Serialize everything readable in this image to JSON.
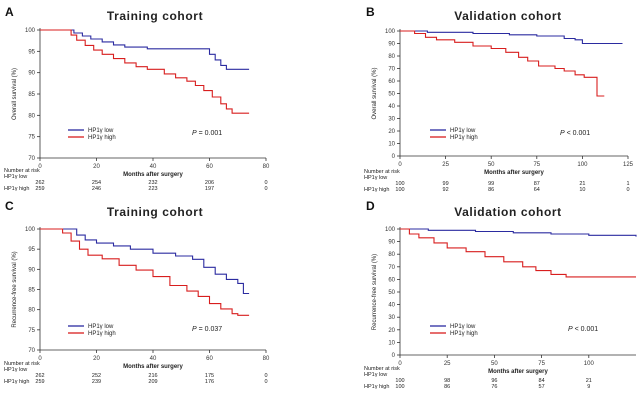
{
  "figure": {
    "risk_header": "Number at risk",
    "xlabel": "Months after surgery",
    "p_prefix": "P"
  },
  "chart_data": [
    {
      "panel": "A",
      "title": "Training cohort",
      "type": "line",
      "ylabel": "Overall survival (%)",
      "xlabel": "Months after surgery",
      "xlim": [
        0,
        80
      ],
      "ylim": [
        70,
        100
      ],
      "xticks": [
        0,
        20,
        40,
        60,
        80
      ],
      "yticks": [
        70,
        75,
        80,
        85,
        90,
        95,
        100
      ],
      "legend_placement": "bottom-left",
      "p_value": "= 0.001",
      "series": [
        {
          "name": "HP1γ low",
          "color": "#2b2ba0",
          "points": [
            [
              0,
              100
            ],
            [
              9,
              100
            ],
            [
              12,
              99.3
            ],
            [
              15,
              98.6
            ],
            [
              18,
              97.9
            ],
            [
              22,
              97.2
            ],
            [
              26,
              96.5
            ],
            [
              30,
              96
            ],
            [
              38,
              95.6
            ],
            [
              58,
              95.6
            ],
            [
              60,
              94.3
            ],
            [
              62,
              93
            ],
            [
              64,
              91.7
            ],
            [
              66,
              90.8
            ],
            [
              74,
              90.8
            ]
          ]
        },
        {
          "name": "HP1γ high",
          "color": "#d81e1e",
          "points": [
            [
              0,
              100
            ],
            [
              9,
              100
            ],
            [
              11,
              98.8
            ],
            [
              13,
              97.6
            ],
            [
              16,
              96.4
            ],
            [
              19,
              95.3
            ],
            [
              22,
              94.3
            ],
            [
              26,
              93.3
            ],
            [
              30,
              92.3
            ],
            [
              34,
              91.4
            ],
            [
              38,
              90.8
            ],
            [
              44,
              89.7
            ],
            [
              48,
              88.8
            ],
            [
              52,
              88
            ],
            [
              55,
              87
            ],
            [
              58,
              85.8
            ],
            [
              61,
              84.3
            ],
            [
              64,
              82.7
            ],
            [
              66,
              81.5
            ],
            [
              68,
              80.5
            ],
            [
              74,
              80.5
            ]
          ]
        }
      ],
      "risk_table": {
        "x": [
          0,
          20,
          40,
          60,
          80
        ],
        "rows": [
          {
            "label": "HP1γ low",
            "values": [
              "262",
              "254",
              "232",
              "206",
              "0"
            ]
          },
          {
            "label": "HP1γ high",
            "values": [
              "259",
              "246",
              "223",
              "197",
              "0"
            ]
          }
        ]
      }
    },
    {
      "panel": "B",
      "title": "Validation cohort",
      "type": "line",
      "ylabel": "Overall survival (%)",
      "xlabel": "Months after surgery",
      "xlim": [
        0,
        125
      ],
      "ylim": [
        0,
        100
      ],
      "xticks": [
        0,
        25,
        50,
        75,
        100,
        125
      ],
      "yticks": [
        0,
        10,
        20,
        30,
        40,
        50,
        60,
        70,
        80,
        90,
        100
      ],
      "legend_placement": "bottom-left",
      "p_value": "< 0.001",
      "series": [
        {
          "name": "HP1γ low",
          "color": "#2b2ba0",
          "points": [
            [
              0,
              100
            ],
            [
              15,
              99
            ],
            [
              40,
              98
            ],
            [
              60,
              97
            ],
            [
              75,
              96
            ],
            [
              90,
              94
            ],
            [
              96,
              93
            ],
            [
              100,
              90
            ],
            [
              122,
              90
            ]
          ]
        },
        {
          "name": "HP1γ high",
          "color": "#d81e1e",
          "points": [
            [
              0,
              100
            ],
            [
              8,
              98
            ],
            [
              14,
              95
            ],
            [
              20,
              93
            ],
            [
              30,
              91
            ],
            [
              40,
              88
            ],
            [
              50,
              86
            ],
            [
              58,
              83
            ],
            [
              65,
              79
            ],
            [
              70,
              76
            ],
            [
              76,
              72
            ],
            [
              85,
              70
            ],
            [
              90,
              68
            ],
            [
              96,
              65
            ],
            [
              101,
              63
            ],
            [
              108,
              63
            ],
            [
              108,
              48
            ],
            [
              112,
              48
            ]
          ]
        }
      ],
      "risk_table": {
        "x": [
          0,
          25,
          50,
          75,
          100,
          125
        ],
        "rows": [
          {
            "label": "HP1γ low",
            "values": [
              "100",
              "99",
              "99",
              "87",
              "21",
              "1"
            ]
          },
          {
            "label": "HP1γ high",
            "values": [
              "100",
              "92",
              "86",
              "64",
              "10",
              "0"
            ]
          }
        ]
      }
    },
    {
      "panel": "C",
      "title": "Training cohort",
      "type": "line",
      "ylabel": "Recurrence-free survival (%)",
      "xlabel": "Months after surgery",
      "xlim": [
        0,
        80
      ],
      "ylim": [
        70,
        100
      ],
      "xticks": [
        0,
        20,
        40,
        60,
        80
      ],
      "yticks": [
        70,
        75,
        80,
        85,
        90,
        95,
        100
      ],
      "legend_placement": "bottom-left",
      "p_value": "= 0.037",
      "series": [
        {
          "name": "HP1γ low",
          "color": "#2b2ba0",
          "points": [
            [
              0,
              100
            ],
            [
              10,
              100
            ],
            [
              13,
              98.5
            ],
            [
              16,
              97.3
            ],
            [
              20,
              96.5
            ],
            [
              26,
              95.8
            ],
            [
              32,
              95
            ],
            [
              40,
              94
            ],
            [
              48,
              93.3
            ],
            [
              54,
              92.5
            ],
            [
              58,
              90.5
            ],
            [
              62,
              88.8
            ],
            [
              66,
              87.5
            ],
            [
              70,
              86.5
            ],
            [
              72,
              86
            ],
            [
              72,
              84
            ],
            [
              74,
              84
            ]
          ]
        },
        {
          "name": "HP1γ high",
          "color": "#d81e1e",
          "points": [
            [
              0,
              100
            ],
            [
              8,
              99
            ],
            [
              11,
              97
            ],
            [
              14,
              95
            ],
            [
              17,
              93.5
            ],
            [
              22,
              92.6
            ],
            [
              28,
              91
            ],
            [
              34,
              89.8
            ],
            [
              40,
              88.2
            ],
            [
              46,
              86
            ],
            [
              52,
              84.6
            ],
            [
              56,
              83.3
            ],
            [
              60,
              81.5
            ],
            [
              64,
              80.2
            ],
            [
              68,
              79
            ],
            [
              70,
              78.6
            ],
            [
              74,
              78.6
            ]
          ]
        }
      ],
      "risk_table": {
        "x": [
          0,
          20,
          40,
          60,
          80
        ],
        "rows": [
          {
            "label": "HP1γ low",
            "values": [
              "262",
              "252",
              "216",
              "175",
              "0"
            ]
          },
          {
            "label": "HP1γ high",
            "values": [
              "259",
              "239",
              "209",
              "176",
              "0"
            ]
          }
        ]
      }
    },
    {
      "panel": "D",
      "title": "Validation cohort",
      "type": "line",
      "ylabel": "Recurrence-free survival (%)",
      "xlabel": "Months after surgery",
      "xlim": [
        0,
        125
      ],
      "ylim": [
        0,
        100
      ],
      "xticks": [
        0,
        25,
        50,
        75,
        100
      ],
      "yticks": [
        0,
        10,
        20,
        30,
        40,
        50,
        60,
        70,
        80,
        90,
        100
      ],
      "legend_placement": "bottom-left",
      "p_value": "< 0.001",
      "series": [
        {
          "name": "HP1γ low",
          "color": "#2b2ba0",
          "points": [
            [
              0,
              100
            ],
            [
              15,
              99
            ],
            [
              40,
              98
            ],
            [
              60,
              97
            ],
            [
              80,
              96
            ],
            [
              100,
              95
            ],
            [
              125,
              94
            ]
          ]
        },
        {
          "name": "HP1γ high",
          "color": "#d81e1e",
          "points": [
            [
              0,
              100
            ],
            [
              5,
              96
            ],
            [
              10,
              93
            ],
            [
              18,
              89
            ],
            [
              25,
              85
            ],
            [
              35,
              82
            ],
            [
              45,
              78
            ],
            [
              55,
              74
            ],
            [
              65,
              70
            ],
            [
              72,
              67
            ],
            [
              80,
              64
            ],
            [
              88,
              62
            ],
            [
              125,
              62
            ]
          ]
        }
      ],
      "risk_table": {
        "x": [
          0,
          25,
          50,
          75,
          100
        ],
        "rows": [
          {
            "label": "HP1γ low",
            "values": [
              "100",
              "98",
              "96",
              "84",
              "21"
            ]
          },
          {
            "label": "HP1γ high",
            "values": [
              "100",
              "86",
              "76",
              "57",
              "9"
            ]
          }
        ]
      }
    }
  ]
}
